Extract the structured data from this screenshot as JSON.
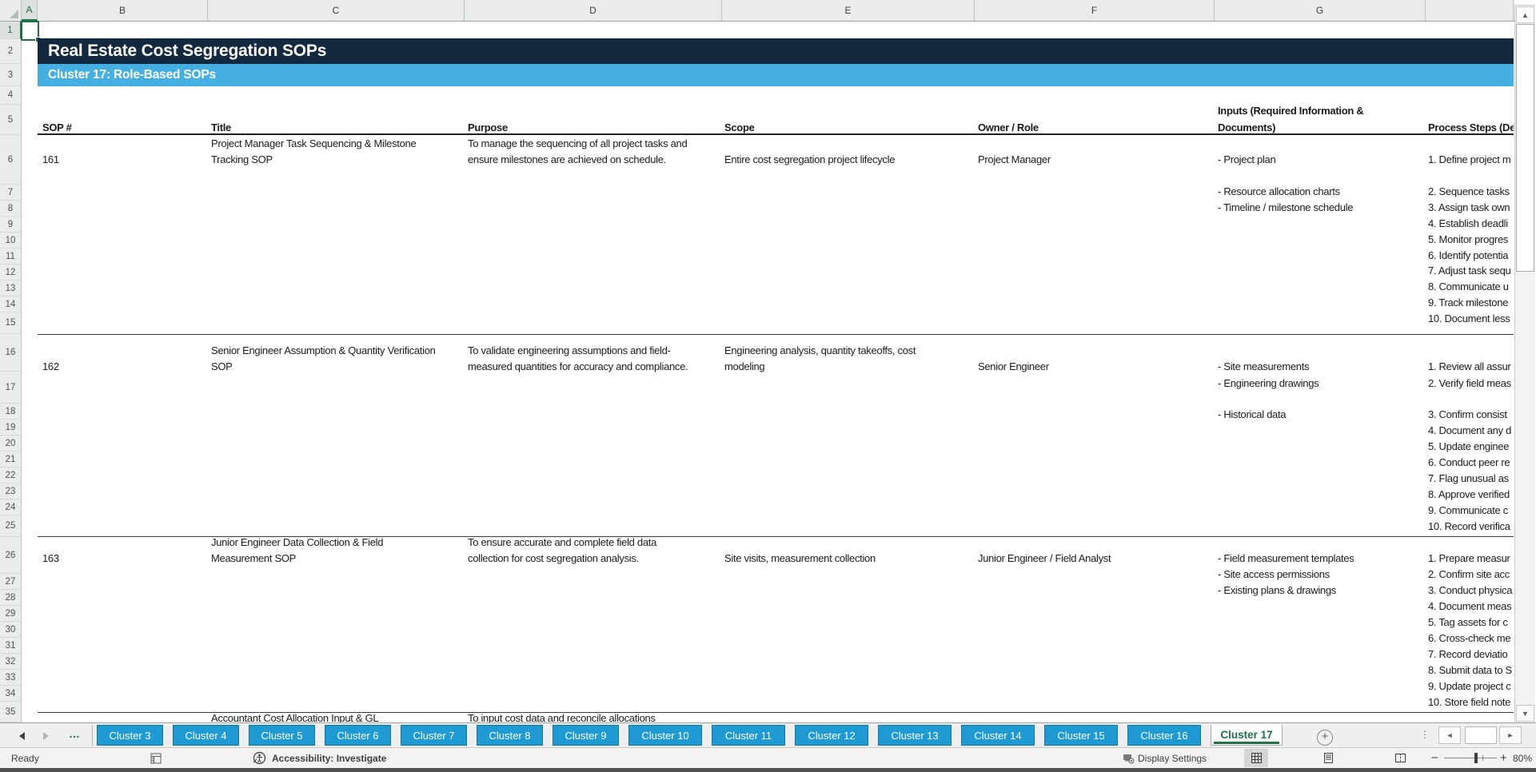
{
  "sheet": {
    "title": "Real Estate Cost Segregation SOPs",
    "subtitle": "Cluster 17: Role-Based SOPs",
    "active_cell": "A1"
  },
  "grid": {
    "column_letters": [
      "A",
      "B",
      "C",
      "D",
      "E",
      "F",
      "G",
      ""
    ],
    "row_count": 35
  },
  "table": {
    "headers": {
      "sop": "SOP #",
      "title": "Title",
      "purpose": "Purpose",
      "scope": "Scope",
      "owner": "Owner / Role",
      "inputs_line1": "Inputs (Required Information &",
      "inputs_line2": "Documents)",
      "steps": "Process Steps (De"
    },
    "rows": [
      {
        "sop": "161",
        "title_lines": [
          "Project Manager Task Sequencing & Milestone",
          "Tracking SOP"
        ],
        "purpose_lines": [
          "To manage the sequencing of all project tasks and",
          "ensure milestones are achieved on schedule."
        ],
        "scope_lines": [
          "Entire cost segregation project lifecycle"
        ],
        "owner": "Project Manager",
        "inputs": [
          "- Project plan",
          "- Resource allocation charts",
          "- Timeline / milestone schedule"
        ],
        "steps": [
          "1. Define project m",
          "2. Sequence tasks",
          "3. Assign task own",
          "4. Establish deadli",
          "5. Monitor progres",
          "6. Identify potentia",
          "7. Adjust task sequ",
          "8. Communicate u",
          "9. Track milestone",
          "10. Document less"
        ]
      },
      {
        "sop": "162",
        "title_lines": [
          "Senior Engineer Assumption & Quantity Verification",
          "SOP"
        ],
        "purpose_lines": [
          "To validate engineering assumptions and field-",
          "measured quantities for accuracy and compliance."
        ],
        "scope_lines": [
          "Engineering analysis, quantity takeoffs, cost",
          "modeling"
        ],
        "owner": "Senior Engineer",
        "inputs": [
          "- Site measurements",
          "- Engineering drawings",
          "- Historical data"
        ],
        "steps": [
          "1. Review all assur",
          "2. Verify field meas",
          "3. Confirm consist",
          "4. Document any d",
          "5. Update enginee",
          "6. Conduct peer re",
          "7. Flag unusual as",
          "8. Approve verified",
          "9. Communicate c",
          "10. Record verifica"
        ]
      },
      {
        "sop": "163",
        "title_lines": [
          "Junior Engineer Data Collection & Field",
          "Measurement SOP"
        ],
        "purpose_lines": [
          "To ensure accurate and complete field data",
          "collection for cost segregation analysis."
        ],
        "scope_lines": [
          "Site visits, measurement collection"
        ],
        "owner": "Junior Engineer / Field Analyst",
        "inputs": [
          "- Field measurement templates",
          "- Site access permissions",
          "- Existing plans & drawings"
        ],
        "steps": [
          "1. Prepare measur",
          "2. Confirm site acc",
          "3. Conduct physica",
          "4. Document meas",
          "5. Tag assets for c",
          "6. Cross-check me",
          "7. Record deviatio",
          "8. Submit data to S",
          "9. Update project c",
          "10. Store field note"
        ]
      }
    ],
    "partial_next_row": {
      "title": "Accountant Cost Allocation Input & GL",
      "purpose": "To input cost data and reconcile allocations"
    }
  },
  "tab_bar": {
    "overflow_indicator": "…",
    "tabs": [
      "Cluster 3",
      "Cluster 4",
      "Cluster 5",
      "Cluster 6",
      "Cluster 7",
      "Cluster 8",
      "Cluster 9",
      "Cluster 10",
      "Cluster 11",
      "Cluster 12",
      "Cluster 13",
      "Cluster 14",
      "Cluster 15",
      "Cluster 16",
      "Cluster 17"
    ],
    "active_tab": "Cluster 17"
  },
  "status_bar": {
    "mode": "Ready",
    "accessibility": "Accessibility: Investigate",
    "display_settings": "Display Settings",
    "zoom_percent": "80%"
  },
  "colors": {
    "title_bar": "#12293F",
    "subtitle_bar": "#45AFE2",
    "tab_blue": "#1F9AD3",
    "excel_green": "#1E7145"
  }
}
